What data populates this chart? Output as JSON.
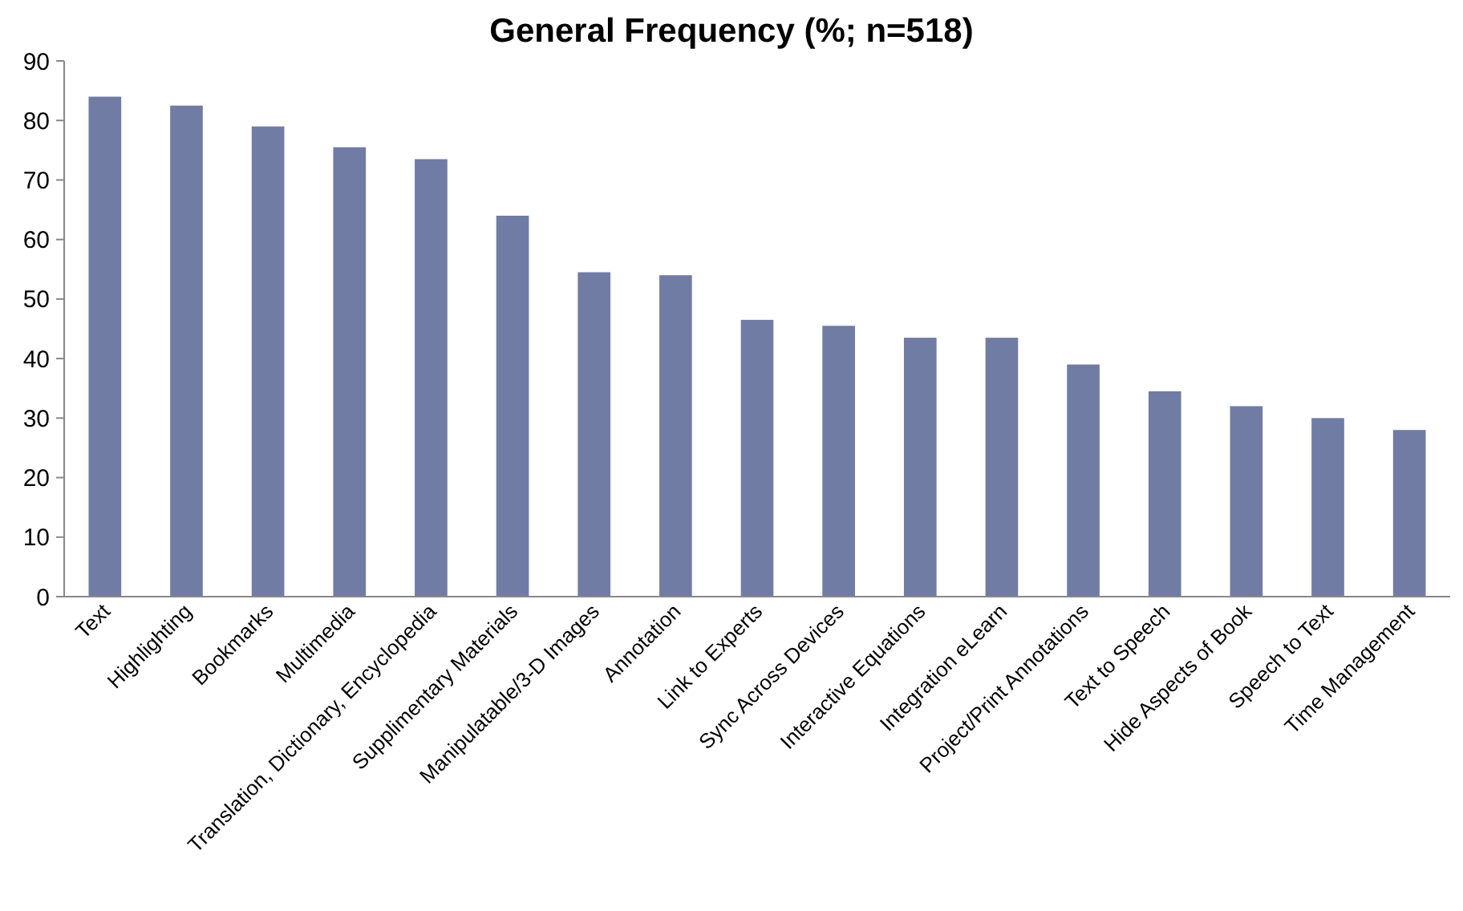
{
  "chart_data": {
    "type": "bar",
    "title": "General Frequency (%; n=518)",
    "categories": [
      "Text",
      "Highlighting",
      "Bookmarks",
      "Multimedia",
      "Translation, Dictionary, Encyclopedia",
      "Supplimentary Materials",
      "Manipulatable/3-D Images",
      "Annotation",
      "Link to Experts",
      "Sync Across Devices",
      "Interactive Equations",
      "Integration eLearn",
      "Project/Print Annotations",
      "Text to Speech",
      "Hide Aspects of Book",
      "Speech to Text",
      "Time Management"
    ],
    "values": [
      84,
      82.5,
      79,
      75.5,
      73.5,
      64,
      54.5,
      54,
      46.5,
      45.5,
      43.5,
      43.5,
      39,
      34.5,
      32,
      30,
      28
    ],
    "color": "#717ca5",
    "ylim": [
      0,
      90
    ],
    "yticks": [
      0,
      10,
      20,
      30,
      40,
      50,
      60,
      70,
      80,
      90
    ],
    "grid": false
  }
}
